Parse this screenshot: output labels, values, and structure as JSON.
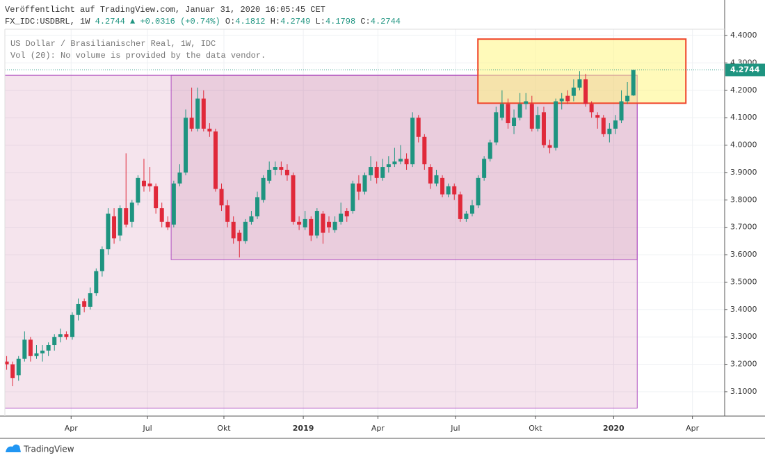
{
  "header": {
    "published": "Veröffentlicht auf TradingView.com, Januar 31, 2020 16:05:45 CET",
    "symbol": "FX_IDC:USDBRL, 1W",
    "price": "4.2744",
    "arrow": "▲",
    "change": "+0.0316 (+0.74%)",
    "ohlc": [
      {
        "label": "O:",
        "value": "4.1812"
      },
      {
        "label": "H:",
        "value": "4.2749"
      },
      {
        "label": "L:",
        "value": "4.1798"
      },
      {
        "label": "C:",
        "value": "4.2744"
      }
    ]
  },
  "footer": {
    "brand": "TradingView"
  },
  "chart_data": {
    "type": "candlestick",
    "legend_lines": [
      "US Dollar / Brasilianischer Real, 1W, IDC",
      "Vol (20): No volume is provided by the data vendor."
    ],
    "up_color": "#1e9480",
    "down_color": "#e0293a",
    "open": [
      3.21,
      3.2,
      3.16,
      3.22,
      3.29,
      3.23,
      3.24,
      3.25,
      3.27,
      3.3,
      3.31,
      3.3,
      3.38,
      3.43,
      3.41,
      3.46,
      3.54,
      3.62,
      3.74,
      3.67,
      3.77,
      3.72,
      3.79,
      3.87,
      3.86,
      3.85,
      3.77,
      3.72,
      3.71,
      3.86,
      3.9,
      4.1,
      4.06,
      4.17,
      4.06,
      4.05,
      3.84,
      3.78,
      3.72,
      3.68,
      3.65,
      3.72,
      3.74,
      3.8,
      3.87,
      3.91,
      3.92,
      3.91,
      3.89,
      3.72,
      3.7,
      3.73,
      3.67,
      3.75,
      3.72,
      3.69,
      3.72,
      3.76,
      3.76,
      3.86,
      3.83,
      3.89,
      3.92,
      3.88,
      3.92,
      3.93,
      3.94,
      3.95,
      3.93,
      4.1,
      4.03,
      3.92,
      3.86,
      3.88,
      3.82,
      3.85,
      3.82,
      3.73,
      3.75,
      3.78,
      3.88,
      3.95,
      4.01,
      4.1,
      4.15,
      4.07,
      4.1,
      4.15,
      4.15,
      4.06,
      4.12,
      4.0,
      3.99,
      4.16,
      4.18,
      4.18,
      4.21,
      4.24,
      4.15,
      4.11,
      4.1,
      4.04,
      4.06,
      4.09,
      4.16,
      4.1812
    ],
    "high": [
      3.23,
      3.21,
      3.23,
      3.32,
      3.3,
      3.27,
      3.27,
      3.28,
      3.31,
      3.33,
      3.32,
      3.39,
      3.44,
      3.44,
      3.48,
      3.55,
      3.63,
      3.77,
      3.77,
      3.78,
      3.97,
      3.8,
      3.89,
      3.95,
      3.92,
      3.86,
      3.79,
      3.74,
      3.87,
      3.93,
      4.13,
      4.21,
      4.21,
      4.2,
      4.08,
      4.06,
      3.86,
      3.8,
      3.74,
      3.69,
      3.73,
      3.76,
      3.83,
      3.89,
      3.94,
      3.94,
      3.94,
      3.93,
      3.9,
      3.74,
      3.76,
      3.74,
      3.77,
      3.76,
      3.74,
      3.74,
      3.79,
      3.77,
      3.87,
      3.89,
      3.9,
      3.96,
      3.94,
      3.95,
      3.96,
      3.99,
      4.0,
      3.97,
      4.12,
      4.11,
      4.04,
      3.93,
      3.91,
      3.89,
      3.86,
      3.86,
      3.83,
      3.76,
      3.8,
      3.89,
      3.96,
      4.02,
      4.14,
      4.2,
      4.17,
      4.13,
      4.19,
      4.19,
      4.18,
      4.14,
      4.14,
      4.02,
      4.17,
      4.19,
      4.2,
      4.24,
      4.27,
      4.26,
      4.16,
      4.12,
      4.11,
      4.08,
      4.11,
      4.2,
      4.23,
      4.2749
    ],
    "low": [
      3.18,
      3.12,
      3.14,
      3.21,
      3.21,
      3.22,
      3.21,
      3.23,
      3.25,
      3.28,
      3.29,
      3.29,
      3.36,
      3.39,
      3.4,
      3.45,
      3.52,
      3.6,
      3.64,
      3.65,
      3.7,
      3.7,
      3.78,
      3.83,
      3.83,
      3.75,
      3.7,
      3.69,
      3.7,
      3.85,
      3.89,
      4.05,
      4.05,
      4.05,
      4.03,
      3.83,
      3.76,
      3.7,
      3.64,
      3.59,
      3.64,
      3.71,
      3.73,
      3.79,
      3.86,
      3.89,
      3.89,
      3.87,
      3.71,
      3.69,
      3.69,
      3.65,
      3.66,
      3.64,
      3.68,
      3.68,
      3.71,
      3.72,
      3.75,
      3.8,
      3.82,
      3.87,
      3.86,
      3.87,
      3.9,
      3.92,
      3.93,
      3.91,
      3.92,
      4.01,
      3.91,
      3.84,
      3.85,
      3.81,
      3.81,
      3.8,
      3.72,
      3.72,
      3.74,
      3.77,
      3.87,
      3.94,
      4.0,
      4.09,
      4.06,
      4.04,
      4.09,
      4.13,
      4.05,
      4.05,
      3.99,
      3.97,
      3.98,
      4.13,
      4.15,
      4.16,
      4.2,
      4.14,
      4.1,
      4.06,
      4.03,
      4.01,
      4.04,
      4.08,
      4.15,
      4.1798
    ],
    "close": [
      3.2,
      3.15,
      3.22,
      3.29,
      3.23,
      3.24,
      3.25,
      3.27,
      3.3,
      3.31,
      3.3,
      3.38,
      3.42,
      3.41,
      3.46,
      3.54,
      3.62,
      3.75,
      3.66,
      3.77,
      3.71,
      3.79,
      3.88,
      3.85,
      3.85,
      3.77,
      3.72,
      3.7,
      3.86,
      3.9,
      4.1,
      4.06,
      4.17,
      4.06,
      4.05,
      3.84,
      3.78,
      3.72,
      3.66,
      3.65,
      3.72,
      3.74,
      3.81,
      3.88,
      3.91,
      3.92,
      3.91,
      3.89,
      3.72,
      3.71,
      3.73,
      3.67,
      3.76,
      3.68,
      3.7,
      3.72,
      3.75,
      3.74,
      3.86,
      3.83,
      3.89,
      3.92,
      3.88,
      3.92,
      3.93,
      3.94,
      3.95,
      3.93,
      4.1,
      4.03,
      3.93,
      3.86,
      3.89,
      3.82,
      3.85,
      3.82,
      3.73,
      3.75,
      3.78,
      3.88,
      3.95,
      4.01,
      4.12,
      4.15,
      4.08,
      4.1,
      4.15,
      4.16,
      4.06,
      4.11,
      4.0,
      3.99,
      4.16,
      4.17,
      4.16,
      4.21,
      4.24,
      4.15,
      4.12,
      4.1,
      4.04,
      4.06,
      4.09,
      4.16,
      4.18,
      4.2744
    ],
    "last_price": 4.2744,
    "last_price_color": "#1e9480",
    "xlim": [
      -0.3,
      120.3
    ],
    "xticks": [
      {
        "value": 10.8,
        "label": "Apr"
      },
      {
        "value": 23.6,
        "label": "Jul"
      },
      {
        "value": 36.4,
        "label": "Okt"
      },
      {
        "value": 49.7,
        "label": "2019"
      },
      {
        "value": 62.2,
        "label": "Apr"
      },
      {
        "value": 75.2,
        "label": "Jul"
      },
      {
        "value": 88.6,
        "label": "Okt"
      },
      {
        "value": 101.7,
        "label": "2020"
      },
      {
        "value": 114.9,
        "label": "Apr"
      }
    ],
    "ylim": [
      3.011,
      4.423
    ],
    "yticks": [
      {
        "value": 3.1,
        "label": "3.1000"
      },
      {
        "value": 3.2,
        "label": "3.2000"
      },
      {
        "value": 3.3,
        "label": "3.3000"
      },
      {
        "value": 3.4,
        "label": "3.4000"
      },
      {
        "value": 3.5,
        "label": "3.5000"
      },
      {
        "value": 3.6,
        "label": "3.6000"
      },
      {
        "value": 3.7,
        "label": "3.7000"
      },
      {
        "value": 3.8,
        "label": "3.8000"
      },
      {
        "value": 3.9,
        "label": "3.9000"
      },
      {
        "value": 4.0,
        "label": "4.0000"
      },
      {
        "value": 4.1,
        "label": "4.1000"
      },
      {
        "value": 4.2,
        "label": "4.2000"
      },
      {
        "value": 4.3,
        "label": "4.3000"
      },
      {
        "value": 4.4,
        "label": "4.4000"
      }
    ],
    "grid": true,
    "drawings": [
      {
        "x": [
          -0.3,
          105.65
        ],
        "y": [
          3.04,
          4.255
        ],
        "fill": "rgba(190,90,140,0.16)",
        "stroke": "#b04fc0"
      },
      {
        "x": [
          27.56,
          105.65
        ],
        "y": [
          3.582,
          4.255
        ],
        "fill": "rgba(170,70,130,0.14)",
        "stroke": "#b04fc0"
      },
      {
        "x": [
          78.96,
          113.8
        ],
        "y": [
          4.153,
          4.387
        ],
        "fill": "rgba(255,245,130,0.55)",
        "stroke": "#f0442a"
      }
    ]
  }
}
